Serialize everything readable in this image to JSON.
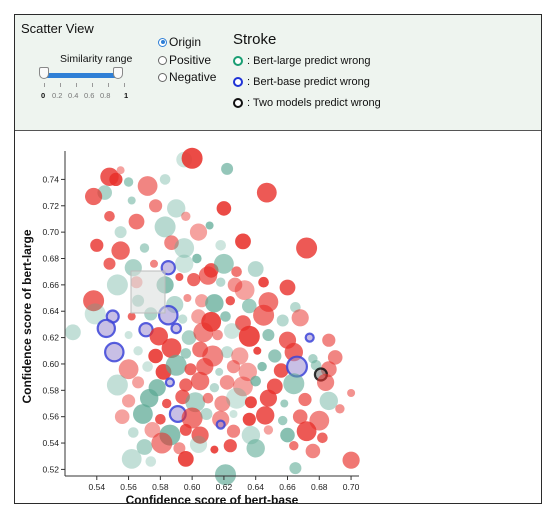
{
  "control": {
    "view_title": "Scatter View",
    "similarity": {
      "label": "Similarity range",
      "range": [
        0,
        1
      ],
      "tick_labels": [
        "0",
        "0.2",
        "0.4",
        "0.6",
        "0.8",
        "1"
      ]
    },
    "mode_options": [
      {
        "label": "Origin",
        "selected": true
      },
      {
        "label": "Positive",
        "selected": false
      },
      {
        "label": "Negative",
        "selected": false
      }
    ],
    "stroke": {
      "title": "Stroke",
      "items": [
        {
          "label": ": Bert-large predict wrong",
          "color": "#1a9e73"
        },
        {
          "label": ": Bert-base predict wrong",
          "color": "#1f33d6"
        },
        {
          "label": ": Two models predict wrong",
          "color": "#111111"
        }
      ]
    }
  },
  "chart_data": {
    "type": "scatter",
    "xlabel": "Confidence score of bert-base",
    "ylabel": "Confidence score of bert-large",
    "xlim": [
      0.52,
      0.705
    ],
    "ylim": [
      0.515,
      0.757
    ],
    "xticks": [
      0.54,
      0.56,
      0.58,
      0.6,
      0.62,
      0.64,
      0.66,
      0.68,
      0.7
    ],
    "yticks": [
      0.52,
      0.54,
      0.56,
      0.58,
      0.6,
      0.62,
      0.64,
      0.66,
      0.68,
      0.7,
      0.72,
      0.74
    ],
    "colors": {
      "red": "#e8302a",
      "teal": "#5aa893"
    },
    "points": [
      {
        "x": 0.555,
        "y": 0.747,
        "c": "red",
        "s": "none"
      },
      {
        "x": 0.552,
        "y": 0.74,
        "c": "red",
        "s": "none"
      },
      {
        "x": 0.548,
        "y": 0.742,
        "c": "red",
        "s": "none"
      },
      {
        "x": 0.56,
        "y": 0.738,
        "c": "teal",
        "s": "none"
      },
      {
        "x": 0.545,
        "y": 0.73,
        "c": "teal",
        "s": "none"
      },
      {
        "x": 0.572,
        "y": 0.735,
        "c": "red",
        "s": "none"
      },
      {
        "x": 0.583,
        "y": 0.74,
        "c": "teal",
        "s": "none"
      },
      {
        "x": 0.595,
        "y": 0.755,
        "c": "teal",
        "s": "none"
      },
      {
        "x": 0.6,
        "y": 0.756,
        "c": "red",
        "s": "none"
      },
      {
        "x": 0.622,
        "y": 0.748,
        "c": "teal",
        "s": "none"
      },
      {
        "x": 0.538,
        "y": 0.727,
        "c": "red",
        "s": "none"
      },
      {
        "x": 0.562,
        "y": 0.724,
        "c": "teal",
        "s": "none"
      },
      {
        "x": 0.577,
        "y": 0.72,
        "c": "red",
        "s": "none"
      },
      {
        "x": 0.59,
        "y": 0.718,
        "c": "teal",
        "s": "none"
      },
      {
        "x": 0.596,
        "y": 0.712,
        "c": "red",
        "s": "none"
      },
      {
        "x": 0.62,
        "y": 0.718,
        "c": "red",
        "s": "none"
      },
      {
        "x": 0.647,
        "y": 0.73,
        "c": "red",
        "s": "none"
      },
      {
        "x": 0.548,
        "y": 0.712,
        "c": "red",
        "s": "none"
      },
      {
        "x": 0.565,
        "y": 0.708,
        "c": "red",
        "s": "none"
      },
      {
        "x": 0.583,
        "y": 0.704,
        "c": "teal",
        "s": "none"
      },
      {
        "x": 0.555,
        "y": 0.7,
        "c": "teal",
        "s": "none"
      },
      {
        "x": 0.604,
        "y": 0.7,
        "c": "red",
        "s": "none"
      },
      {
        "x": 0.611,
        "y": 0.705,
        "c": "teal",
        "s": "none"
      },
      {
        "x": 0.54,
        "y": 0.69,
        "c": "red",
        "s": "none"
      },
      {
        "x": 0.555,
        "y": 0.686,
        "c": "red",
        "s": "none"
      },
      {
        "x": 0.57,
        "y": 0.688,
        "c": "teal",
        "s": "none"
      },
      {
        "x": 0.587,
        "y": 0.692,
        "c": "red",
        "s": "none"
      },
      {
        "x": 0.595,
        "y": 0.688,
        "c": "teal",
        "s": "none"
      },
      {
        "x": 0.618,
        "y": 0.69,
        "c": "teal",
        "s": "none"
      },
      {
        "x": 0.632,
        "y": 0.693,
        "c": "red",
        "s": "none"
      },
      {
        "x": 0.672,
        "y": 0.688,
        "c": "red",
        "s": "none"
      },
      {
        "x": 0.548,
        "y": 0.676,
        "c": "red",
        "s": "none"
      },
      {
        "x": 0.563,
        "y": 0.673,
        "c": "teal",
        "s": "none"
      },
      {
        "x": 0.576,
        "y": 0.676,
        "c": "red",
        "s": "none"
      },
      {
        "x": 0.585,
        "y": 0.673,
        "c": "blue",
        "s": "blue"
      },
      {
        "x": 0.595,
        "y": 0.676,
        "c": "teal",
        "s": "none"
      },
      {
        "x": 0.603,
        "y": 0.68,
        "c": "teal",
        "s": "none"
      },
      {
        "x": 0.612,
        "y": 0.671,
        "c": "red",
        "s": "none"
      },
      {
        "x": 0.62,
        "y": 0.676,
        "c": "teal",
        "s": "none"
      },
      {
        "x": 0.628,
        "y": 0.67,
        "c": "red",
        "s": "none"
      },
      {
        "x": 0.64,
        "y": 0.672,
        "c": "teal",
        "s": "none"
      },
      {
        "x": 0.553,
        "y": 0.66,
        "c": "teal",
        "s": "none"
      },
      {
        "x": 0.565,
        "y": 0.662,
        "c": "red",
        "s": "none"
      },
      {
        "x": 0.583,
        "y": 0.66,
        "c": "teal",
        "s": "none"
      },
      {
        "x": 0.592,
        "y": 0.666,
        "c": "red",
        "s": "none"
      },
      {
        "x": 0.601,
        "y": 0.664,
        "c": "red",
        "s": "none"
      },
      {
        "x": 0.61,
        "y": 0.667,
        "c": "red",
        "s": "none"
      },
      {
        "x": 0.618,
        "y": 0.662,
        "c": "teal",
        "s": "none"
      },
      {
        "x": 0.627,
        "y": 0.66,
        "c": "red",
        "s": "none"
      },
      {
        "x": 0.633,
        "y": 0.656,
        "c": "red",
        "s": "none"
      },
      {
        "x": 0.645,
        "y": 0.662,
        "c": "red",
        "s": "none"
      },
      {
        "x": 0.66,
        "y": 0.658,
        "c": "red",
        "s": "none"
      },
      {
        "x": 0.538,
        "y": 0.648,
        "c": "red",
        "s": "none"
      },
      {
        "x": 0.566,
        "y": 0.648,
        "c": "teal",
        "s": "none"
      },
      {
        "x": 0.589,
        "y": 0.645,
        "c": "teal",
        "s": "none"
      },
      {
        "x": 0.597,
        "y": 0.65,
        "c": "red",
        "s": "none"
      },
      {
        "x": 0.606,
        "y": 0.648,
        "c": "red",
        "s": "none"
      },
      {
        "x": 0.614,
        "y": 0.646,
        "c": "teal",
        "s": "none"
      },
      {
        "x": 0.624,
        "y": 0.648,
        "c": "red",
        "s": "none"
      },
      {
        "x": 0.636,
        "y": 0.644,
        "c": "teal",
        "s": "none"
      },
      {
        "x": 0.648,
        "y": 0.647,
        "c": "red",
        "s": "none"
      },
      {
        "x": 0.665,
        "y": 0.643,
        "c": "teal",
        "s": "none"
      },
      {
        "x": 0.525,
        "y": 0.624,
        "c": "teal",
        "s": "none"
      },
      {
        "x": 0.539,
        "y": 0.638,
        "c": "teal",
        "s": "none"
      },
      {
        "x": 0.55,
        "y": 0.636,
        "c": "blue",
        "s": "blue"
      },
      {
        "x": 0.546,
        "y": 0.627,
        "c": "blue",
        "s": "blue"
      },
      {
        "x": 0.562,
        "y": 0.636,
        "c": "red",
        "s": "none"
      },
      {
        "x": 0.574,
        "y": 0.638,
        "c": "teal",
        "s": "none"
      },
      {
        "x": 0.585,
        "y": 0.637,
        "c": "blue",
        "s": "blue"
      },
      {
        "x": 0.594,
        "y": 0.634,
        "c": "teal",
        "s": "none"
      },
      {
        "x": 0.604,
        "y": 0.636,
        "c": "red",
        "s": "none"
      },
      {
        "x": 0.612,
        "y": 0.632,
        "c": "red",
        "s": "none"
      },
      {
        "x": 0.621,
        "y": 0.636,
        "c": "teal",
        "s": "none"
      },
      {
        "x": 0.632,
        "y": 0.631,
        "c": "red",
        "s": "none"
      },
      {
        "x": 0.645,
        "y": 0.637,
        "c": "red",
        "s": "none"
      },
      {
        "x": 0.657,
        "y": 0.633,
        "c": "teal",
        "s": "none"
      },
      {
        "x": 0.668,
        "y": 0.635,
        "c": "red",
        "s": "none"
      },
      {
        "x": 0.56,
        "y": 0.622,
        "c": "teal",
        "s": "none"
      },
      {
        "x": 0.571,
        "y": 0.626,
        "c": "blue",
        "s": "blue"
      },
      {
        "x": 0.579,
        "y": 0.621,
        "c": "red",
        "s": "none"
      },
      {
        "x": 0.59,
        "y": 0.627,
        "c": "blue",
        "s": "blue"
      },
      {
        "x": 0.598,
        "y": 0.62,
        "c": "teal",
        "s": "none"
      },
      {
        "x": 0.607,
        "y": 0.624,
        "c": "red",
        "s": "none"
      },
      {
        "x": 0.616,
        "y": 0.622,
        "c": "red",
        "s": "none"
      },
      {
        "x": 0.625,
        "y": 0.625,
        "c": "teal",
        "s": "none"
      },
      {
        "x": 0.636,
        "y": 0.621,
        "c": "red",
        "s": "none"
      },
      {
        "x": 0.648,
        "y": 0.622,
        "c": "teal",
        "s": "none"
      },
      {
        "x": 0.66,
        "y": 0.618,
        "c": "red",
        "s": "none"
      },
      {
        "x": 0.674,
        "y": 0.62,
        "c": "blue",
        "s": "blue"
      },
      {
        "x": 0.686,
        "y": 0.618,
        "c": "red",
        "s": "none"
      },
      {
        "x": 0.551,
        "y": 0.609,
        "c": "blue",
        "s": "blue"
      },
      {
        "x": 0.566,
        "y": 0.61,
        "c": "teal",
        "s": "none"
      },
      {
        "x": 0.577,
        "y": 0.606,
        "c": "red",
        "s": "none"
      },
      {
        "x": 0.587,
        "y": 0.612,
        "c": "red",
        "s": "none"
      },
      {
        "x": 0.596,
        "y": 0.608,
        "c": "teal",
        "s": "none"
      },
      {
        "x": 0.605,
        "y": 0.611,
        "c": "red",
        "s": "none"
      },
      {
        "x": 0.613,
        "y": 0.606,
        "c": "red",
        "s": "none"
      },
      {
        "x": 0.622,
        "y": 0.609,
        "c": "teal",
        "s": "none"
      },
      {
        "x": 0.63,
        "y": 0.606,
        "c": "red",
        "s": "none"
      },
      {
        "x": 0.641,
        "y": 0.61,
        "c": "red",
        "s": "none"
      },
      {
        "x": 0.652,
        "y": 0.606,
        "c": "teal",
        "s": "none"
      },
      {
        "x": 0.664,
        "y": 0.609,
        "c": "red",
        "s": "none"
      },
      {
        "x": 0.676,
        "y": 0.604,
        "c": "teal",
        "s": "none"
      },
      {
        "x": 0.69,
        "y": 0.605,
        "c": "red",
        "s": "none"
      },
      {
        "x": 0.56,
        "y": 0.596,
        "c": "red",
        "s": "none"
      },
      {
        "x": 0.572,
        "y": 0.598,
        "c": "teal",
        "s": "none"
      },
      {
        "x": 0.582,
        "y": 0.594,
        "c": "red",
        "s": "none"
      },
      {
        "x": 0.59,
        "y": 0.599,
        "c": "teal",
        "s": "none"
      },
      {
        "x": 0.599,
        "y": 0.596,
        "c": "red",
        "s": "none"
      },
      {
        "x": 0.608,
        "y": 0.598,
        "c": "red",
        "s": "none"
      },
      {
        "x": 0.617,
        "y": 0.594,
        "c": "teal",
        "s": "none"
      },
      {
        "x": 0.626,
        "y": 0.598,
        "c": "red",
        "s": "none"
      },
      {
        "x": 0.635,
        "y": 0.594,
        "c": "red",
        "s": "none"
      },
      {
        "x": 0.644,
        "y": 0.598,
        "c": "teal",
        "s": "none"
      },
      {
        "x": 0.656,
        "y": 0.595,
        "c": "red",
        "s": "none"
      },
      {
        "x": 0.666,
        "y": 0.598,
        "c": "blue",
        "s": "blue"
      },
      {
        "x": 0.678,
        "y": 0.599,
        "c": "teal",
        "s": "none"
      },
      {
        "x": 0.686,
        "y": 0.596,
        "c": "red",
        "s": "none"
      },
      {
        "x": 0.553,
        "y": 0.584,
        "c": "teal",
        "s": "none"
      },
      {
        "x": 0.566,
        "y": 0.586,
        "c": "red",
        "s": "none"
      },
      {
        "x": 0.578,
        "y": 0.582,
        "c": "teal",
        "s": "none"
      },
      {
        "x": 0.586,
        "y": 0.586,
        "c": "blue",
        "s": "blue"
      },
      {
        "x": 0.596,
        "y": 0.584,
        "c": "red",
        "s": "none"
      },
      {
        "x": 0.605,
        "y": 0.587,
        "c": "red",
        "s": "none"
      },
      {
        "x": 0.614,
        "y": 0.582,
        "c": "teal",
        "s": "none"
      },
      {
        "x": 0.622,
        "y": 0.586,
        "c": "red",
        "s": "none"
      },
      {
        "x": 0.632,
        "y": 0.583,
        "c": "red",
        "s": "none"
      },
      {
        "x": 0.64,
        "y": 0.587,
        "c": "teal",
        "s": "none"
      },
      {
        "x": 0.652,
        "y": 0.583,
        "c": "red",
        "s": "none"
      },
      {
        "x": 0.664,
        "y": 0.585,
        "c": "teal",
        "s": "none"
      },
      {
        "x": 0.681,
        "y": 0.592,
        "c": "black",
        "s": "black"
      },
      {
        "x": 0.684,
        "y": 0.586,
        "c": "red",
        "s": "none"
      },
      {
        "x": 0.7,
        "y": 0.578,
        "c": "red",
        "s": "none"
      },
      {
        "x": 0.56,
        "y": 0.572,
        "c": "red",
        "s": "none"
      },
      {
        "x": 0.573,
        "y": 0.574,
        "c": "teal",
        "s": "none"
      },
      {
        "x": 0.584,
        "y": 0.57,
        "c": "red",
        "s": "none"
      },
      {
        "x": 0.594,
        "y": 0.575,
        "c": "red",
        "s": "none"
      },
      {
        "x": 0.602,
        "y": 0.571,
        "c": "teal",
        "s": "none"
      },
      {
        "x": 0.61,
        "y": 0.574,
        "c": "red",
        "s": "none"
      },
      {
        "x": 0.619,
        "y": 0.57,
        "c": "red",
        "s": "none"
      },
      {
        "x": 0.628,
        "y": 0.574,
        "c": "teal",
        "s": "none"
      },
      {
        "x": 0.637,
        "y": 0.571,
        "c": "red",
        "s": "none"
      },
      {
        "x": 0.648,
        "y": 0.574,
        "c": "red",
        "s": "none"
      },
      {
        "x": 0.658,
        "y": 0.57,
        "c": "teal",
        "s": "none"
      },
      {
        "x": 0.671,
        "y": 0.573,
        "c": "red",
        "s": "none"
      },
      {
        "x": 0.686,
        "y": 0.572,
        "c": "teal",
        "s": "none"
      },
      {
        "x": 0.693,
        "y": 0.566,
        "c": "red",
        "s": "none"
      },
      {
        "x": 0.556,
        "y": 0.56,
        "c": "red",
        "s": "none"
      },
      {
        "x": 0.569,
        "y": 0.562,
        "c": "teal",
        "s": "none"
      },
      {
        "x": 0.58,
        "y": 0.558,
        "c": "red",
        "s": "none"
      },
      {
        "x": 0.591,
        "y": 0.562,
        "c": "blue",
        "s": "blue"
      },
      {
        "x": 0.6,
        "y": 0.559,
        "c": "red",
        "s": "none"
      },
      {
        "x": 0.609,
        "y": 0.562,
        "c": "teal",
        "s": "none"
      },
      {
        "x": 0.618,
        "y": 0.558,
        "c": "red",
        "s": "none"
      },
      {
        "x": 0.626,
        "y": 0.562,
        "c": "teal",
        "s": "none"
      },
      {
        "x": 0.636,
        "y": 0.558,
        "c": "red",
        "s": "none"
      },
      {
        "x": 0.646,
        "y": 0.561,
        "c": "red",
        "s": "none"
      },
      {
        "x": 0.657,
        "y": 0.557,
        "c": "teal",
        "s": "none"
      },
      {
        "x": 0.668,
        "y": 0.56,
        "c": "red",
        "s": "none"
      },
      {
        "x": 0.68,
        "y": 0.557,
        "c": "red",
        "s": "none"
      },
      {
        "x": 0.563,
        "y": 0.548,
        "c": "teal",
        "s": "none"
      },
      {
        "x": 0.575,
        "y": 0.55,
        "c": "red",
        "s": "none"
      },
      {
        "x": 0.586,
        "y": 0.546,
        "c": "teal",
        "s": "none"
      },
      {
        "x": 0.596,
        "y": 0.55,
        "c": "red",
        "s": "none"
      },
      {
        "x": 0.605,
        "y": 0.546,
        "c": "red",
        "s": "none"
      },
      {
        "x": 0.618,
        "y": 0.554,
        "c": "blue",
        "s": "blue"
      },
      {
        "x": 0.626,
        "y": 0.549,
        "c": "red",
        "s": "none"
      },
      {
        "x": 0.637,
        "y": 0.546,
        "c": "teal",
        "s": "none"
      },
      {
        "x": 0.648,
        "y": 0.55,
        "c": "red",
        "s": "none"
      },
      {
        "x": 0.66,
        "y": 0.546,
        "c": "teal",
        "s": "none"
      },
      {
        "x": 0.672,
        "y": 0.549,
        "c": "red",
        "s": "none"
      },
      {
        "x": 0.682,
        "y": 0.544,
        "c": "red",
        "s": "none"
      },
      {
        "x": 0.57,
        "y": 0.537,
        "c": "teal",
        "s": "none"
      },
      {
        "x": 0.581,
        "y": 0.54,
        "c": "red",
        "s": "none"
      },
      {
        "x": 0.592,
        "y": 0.536,
        "c": "red",
        "s": "none"
      },
      {
        "x": 0.604,
        "y": 0.539,
        "c": "teal",
        "s": "none"
      },
      {
        "x": 0.614,
        "y": 0.535,
        "c": "red",
        "s": "none"
      },
      {
        "x": 0.624,
        "y": 0.538,
        "c": "red",
        "s": "none"
      },
      {
        "x": 0.64,
        "y": 0.536,
        "c": "teal",
        "s": "none"
      },
      {
        "x": 0.664,
        "y": 0.538,
        "c": "red",
        "s": "none"
      },
      {
        "x": 0.676,
        "y": 0.534,
        "c": "red",
        "s": "none"
      },
      {
        "x": 0.562,
        "y": 0.528,
        "c": "teal",
        "s": "none"
      },
      {
        "x": 0.574,
        "y": 0.526,
        "c": "teal",
        "s": "none"
      },
      {
        "x": 0.596,
        "y": 0.528,
        "c": "red",
        "s": "none"
      },
      {
        "x": 0.621,
        "y": 0.516,
        "c": "teal",
        "s": "none"
      },
      {
        "x": 0.665,
        "y": 0.521,
        "c": "teal",
        "s": "none"
      },
      {
        "x": 0.7,
        "y": 0.527,
        "c": "red",
        "s": "none"
      }
    ]
  }
}
